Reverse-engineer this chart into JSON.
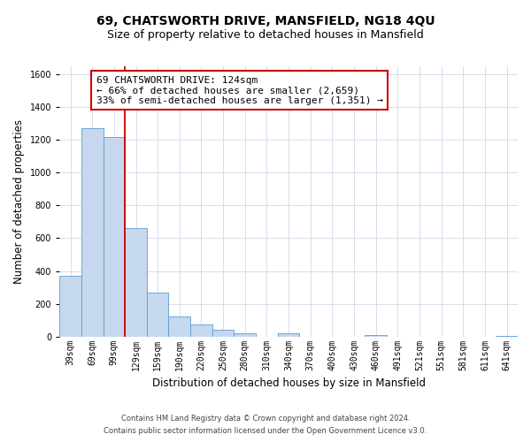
{
  "title": "69, CHATSWORTH DRIVE, MANSFIELD, NG18 4QU",
  "subtitle": "Size of property relative to detached houses in Mansfield",
  "xlabel": "Distribution of detached houses by size in Mansfield",
  "ylabel": "Number of detached properties",
  "bar_labels": [
    "39sqm",
    "69sqm",
    "99sqm",
    "129sqm",
    "159sqm",
    "190sqm",
    "220sqm",
    "250sqm",
    "280sqm",
    "310sqm",
    "340sqm",
    "370sqm",
    "400sqm",
    "430sqm",
    "460sqm",
    "491sqm",
    "521sqm",
    "551sqm",
    "581sqm",
    "611sqm",
    "641sqm"
  ],
  "bar_values": [
    370,
    1270,
    1220,
    660,
    270,
    120,
    75,
    40,
    20,
    0,
    20,
    0,
    0,
    0,
    10,
    0,
    0,
    0,
    0,
    0,
    5
  ],
  "bar_color": "#c5d8ed",
  "bar_edge_color": "#5b9bd5",
  "vline_color": "#cc0000",
  "vline_pos": 2.5,
  "annotation_line1": "69 CHATSWORTH DRIVE: 124sqm",
  "annotation_line2": "← 66% of detached houses are smaller (2,659)",
  "annotation_line3": "33% of semi-detached houses are larger (1,351) →",
  "annotation_box_color": "#ffffff",
  "annotation_box_edge": "#cc0000",
  "ylim": [
    0,
    1650
  ],
  "yticks": [
    0,
    200,
    400,
    600,
    800,
    1000,
    1200,
    1400,
    1600
  ],
  "footnote_line1": "Contains HM Land Registry data © Crown copyright and database right 2024.",
  "footnote_line2": "Contains public sector information licensed under the Open Government Licence v3.0.",
  "bg_color": "#ffffff",
  "grid_color": "#d0d8e8",
  "title_fontsize": 10,
  "subtitle_fontsize": 9,
  "axis_label_fontsize": 8.5,
  "tick_fontsize": 7,
  "annotation_fontsize": 8,
  "footnote_fontsize": 6
}
